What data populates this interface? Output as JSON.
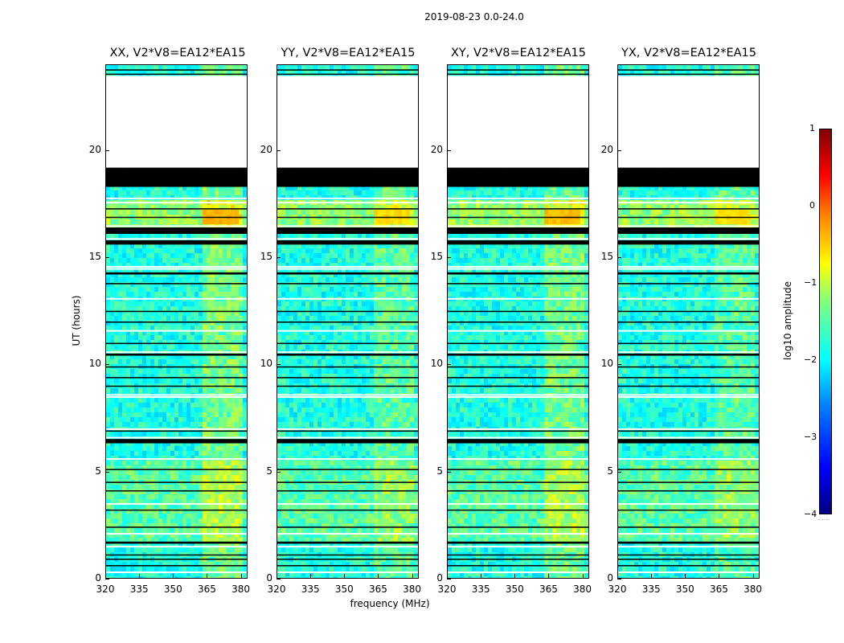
{
  "chart_data": {
    "type": "heatmap",
    "suptitle": "2019-08-23 0.0-24.0",
    "xlabel": "frequency (MHz)",
    "ylabel": "UT (hours)",
    "xlim": [
      320,
      383
    ],
    "ylim": [
      0,
      24
    ],
    "xticks": [
      "320",
      "335",
      "350",
      "365",
      "380"
    ],
    "yticks": [
      "0",
      "5",
      "10",
      "15",
      "20"
    ],
    "panels": [
      {
        "title": "XX, V2*V8=EA12*EA15",
        "rfi_strength": 1.0
      },
      {
        "title": "YY, V2*V8=EA12*EA15",
        "rfi_strength": 0.6
      },
      {
        "title": "XY, V2*V8=EA12*EA15",
        "rfi_strength": 0.9
      },
      {
        "title": "YX, V2*V8=EA12*EA15",
        "rfi_strength": 0.55
      }
    ],
    "colorbar": {
      "label": "log10 amplitude",
      "ticks": [
        "1",
        "0",
        "−1",
        "−2",
        "−3",
        "−4"
      ],
      "range": [
        -4,
        1
      ]
    },
    "gaps_hours": [
      [
        19.2,
        23.5
      ]
    ],
    "flagged_black_hours": [
      [
        18.3,
        19.2
      ],
      [
        16.1,
        16.4
      ],
      [
        15.6,
        15.8
      ],
      [
        14.2,
        14.3
      ],
      [
        10.4,
        10.5
      ],
      [
        6.3,
        6.5
      ],
      [
        1.6,
        1.7
      ]
    ],
    "white_lines_hours": [
      17.8,
      17.6,
      16.5,
      15.9,
      14.6,
      14.5,
      13.1,
      11.6,
      10.6,
      8.6,
      8.5,
      7.0,
      6.6,
      5.6,
      3.5,
      2.1,
      1.5,
      0.3
    ],
    "black_lines_hours": [
      23.8,
      23.6,
      17.3,
      16.9,
      13.8,
      12.5,
      12.0,
      11.0,
      9.9,
      9.4,
      9.0,
      6.9,
      5.1,
      4.5,
      4.1,
      3.2,
      2.4,
      1.1,
      0.9,
      0.6
    ],
    "rfi_band_mhz": [
      363,
      381
    ]
  }
}
